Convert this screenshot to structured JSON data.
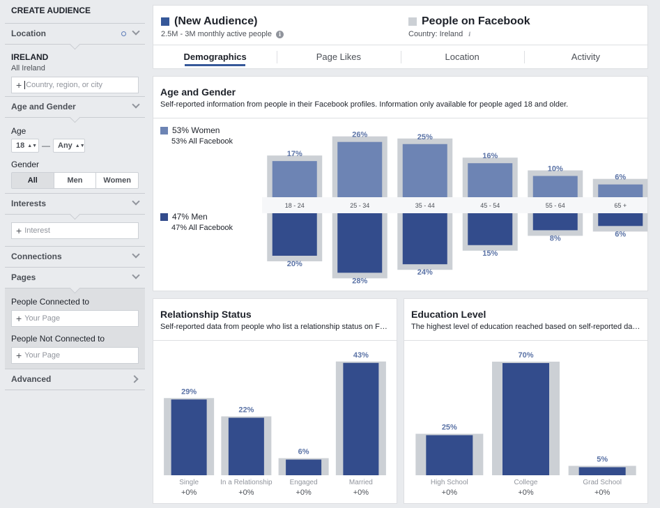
{
  "sidebar": {
    "title": "CREATE AUDIENCE",
    "location": {
      "header": "Location",
      "country": "IRELAND",
      "scope": "All Ireland",
      "placeholder": "Country, region, or city"
    },
    "age_gender": {
      "header": "Age and Gender",
      "age_label": "Age",
      "age_min": "18",
      "age_sep": "—",
      "age_max": "Any",
      "gender_label": "Gender",
      "genders": [
        "All",
        "Men",
        "Women"
      ]
    },
    "interests": {
      "header": "Interests",
      "placeholder": "Interest"
    },
    "connections": {
      "header": "Connections"
    },
    "pages": {
      "header": "Pages",
      "connected_label": "People Connected to",
      "connected_placeholder": "Your Page",
      "not_connected_label": "People Not Connected to",
      "not_connected_placeholder": "Your Page"
    },
    "advanced": {
      "header": "Advanced"
    }
  },
  "header": {
    "audience": {
      "name": "(New Audience)",
      "meta": "2.5M - 3M monthly active people",
      "color": "#365899"
    },
    "comparison": {
      "name": "People on Facebook",
      "meta": "Country: Ireland",
      "color": "#ccd0d5"
    },
    "tabs": [
      "Demographics",
      "Page Likes",
      "Location",
      "Activity"
    ]
  },
  "age_gender": {
    "title": "Age and Gender",
    "subtitle": "Self-reported information from people in their Facebook profiles. Information only available for people aged 18 and older.",
    "women_label": "53% Women",
    "women_all": "53% All Facebook",
    "men_label": "47% Men",
    "men_all": "47% All Facebook"
  },
  "relationship": {
    "title": "Relationship Status",
    "subtitle": "Self-reported data from people who list a relationship status on Facebook."
  },
  "education": {
    "title": "Education Level",
    "subtitle": "The highest level of education reached based on self-reported data on Facebook."
  },
  "chart_data": [
    {
      "id": "age_gender",
      "type": "bar",
      "categories": [
        "18 - 24",
        "25 - 34",
        "35 - 44",
        "45 - 54",
        "55 - 64",
        "65 +"
      ],
      "series": [
        {
          "name": "Women",
          "values": [
            17,
            26,
            25,
            16,
            10,
            6
          ],
          "labels": [
            "17%",
            "26%",
            "25%",
            "16%",
            "10%",
            "6%"
          ],
          "color": "#6d84b4"
        },
        {
          "name": "Men",
          "values": [
            20,
            28,
            24,
            15,
            8,
            6
          ],
          "labels": [
            "20%",
            "28%",
            "24%",
            "15%",
            "8%",
            "6%"
          ],
          "color": "#334c8c"
        }
      ],
      "benchmark_color": "#ccd0d5"
    },
    {
      "id": "relationship",
      "type": "bar",
      "categories": [
        "Single",
        "In a Relationship",
        "Engaged",
        "Married"
      ],
      "values": [
        29,
        22,
        6,
        43
      ],
      "labels": [
        "29%",
        "22%",
        "6%",
        "43%"
      ],
      "deltas": [
        "+0%",
        "+0%",
        "+0%",
        "+0%"
      ],
      "color": "#334c8c",
      "benchmark_color": "#ccd0d5"
    },
    {
      "id": "education",
      "type": "bar",
      "categories": [
        "High School",
        "College",
        "Grad School"
      ],
      "values": [
        25,
        70,
        5
      ],
      "labels": [
        "25%",
        "70%",
        "5%"
      ],
      "deltas": [
        "+0%",
        "+0%",
        "+0%"
      ],
      "color": "#334c8c",
      "benchmark_color": "#ccd0d5"
    }
  ]
}
